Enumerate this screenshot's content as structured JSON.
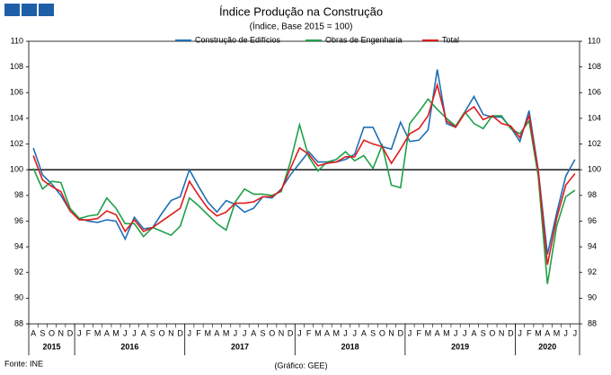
{
  "chart_data": {
    "type": "line",
    "title": "Índice Produção na Construção",
    "subtitle": "(Índice, Base 2015 = 100)",
    "categories": [
      "A",
      "S",
      "O",
      "N",
      "D",
      "J",
      "F",
      "M",
      "A",
      "M",
      "J",
      "J",
      "A",
      "S",
      "O",
      "N",
      "D",
      "J",
      "F",
      "M",
      "A",
      "M",
      "J",
      "J",
      "A",
      "S",
      "O",
      "N",
      "D",
      "J",
      "F",
      "M",
      "A",
      "M",
      "J",
      "J",
      "A",
      "S",
      "O",
      "N",
      "D",
      "J",
      "F",
      "M",
      "A",
      "M",
      "J",
      "J",
      "A",
      "S",
      "O",
      "N",
      "D",
      "J",
      "F",
      "M",
      "A",
      "M",
      "J",
      "J"
    ],
    "years": [
      "2015",
      "2016",
      "2017",
      "2018",
      "2019",
      "2020"
    ],
    "series": [
      {
        "name": "Construção de Edifícios",
        "color": "#1f6fb4",
        "values": [
          101.7,
          99.6,
          98.9,
          98.0,
          96.8,
          96.2,
          96.0,
          95.9,
          96.1,
          96.0,
          94.6,
          96.3,
          95.4,
          95.5,
          96.6,
          97.6,
          97.9,
          100.0,
          98.7,
          97.5,
          96.7,
          97.6,
          97.3,
          96.7,
          97.0,
          97.9,
          97.8,
          98.5,
          99.6,
          100.5,
          101.4,
          100.6,
          100.6,
          100.6,
          100.8,
          101.2,
          103.3,
          103.3,
          101.8,
          101.6,
          103.7,
          102.2,
          102.3,
          103.1,
          107.8,
          103.6,
          103.3,
          104.5,
          105.7,
          104.3,
          104.1,
          104.1,
          103.3,
          102.2,
          104.6,
          100.0,
          93.4,
          96.6,
          99.5,
          100.8
        ]
      },
      {
        "name": "Obras de Engenharia",
        "color": "#1fa04a",
        "values": [
          100.1,
          98.5,
          99.1,
          99.0,
          97.0,
          96.2,
          96.4,
          96.5,
          97.8,
          97.0,
          95.8,
          95.8,
          94.8,
          95.5,
          95.2,
          94.9,
          95.6,
          97.8,
          97.2,
          96.5,
          95.8,
          95.3,
          97.5,
          98.5,
          98.1,
          98.1,
          98.0,
          98.3,
          100.6,
          103.5,
          101.0,
          99.9,
          100.6,
          100.8,
          101.4,
          100.7,
          101.1,
          100.1,
          101.9,
          98.8,
          98.6,
          103.6,
          104.5,
          105.5,
          104.7,
          104.0,
          103.4,
          104.5,
          103.6,
          103.2,
          104.2,
          104.2,
          103.2,
          102.8,
          103.8,
          99.5,
          91.1,
          95.6,
          97.9,
          98.4
        ]
      },
      {
        "name": "Total",
        "color": "#e01b1b",
        "values": [
          101.1,
          99.2,
          98.7,
          98.3,
          96.8,
          96.1,
          96.1,
          96.2,
          96.8,
          96.5,
          95.2,
          96.1,
          95.2,
          95.5,
          96.0,
          96.5,
          97.0,
          99.1,
          98.0,
          97.0,
          96.4,
          96.7,
          97.4,
          97.4,
          97.5,
          97.9,
          97.9,
          98.4,
          100.1,
          101.7,
          101.2,
          100.3,
          100.5,
          100.6,
          101.0,
          101.0,
          102.3,
          102.0,
          101.8,
          100.5,
          101.6,
          102.8,
          103.2,
          104.2,
          106.6,
          103.8,
          103.3,
          104.4,
          104.9,
          103.9,
          104.2,
          103.6,
          103.4,
          102.5,
          104.2,
          99.9,
          92.6,
          96.2,
          98.8,
          99.7
        ]
      }
    ],
    "ylim": [
      88,
      110
    ],
    "yticks": [
      88,
      90,
      92,
      94,
      96,
      98,
      100,
      102,
      104,
      106,
      108,
      110
    ],
    "y2lim": [
      88,
      110
    ],
    "y2ticks": [
      88,
      90,
      92,
      94,
      96,
      98,
      100,
      102,
      104,
      106,
      108,
      110
    ],
    "hline": 100,
    "legend": "top",
    "source": "Fonte: INE",
    "credit": "(Gráfico: GEE)"
  }
}
